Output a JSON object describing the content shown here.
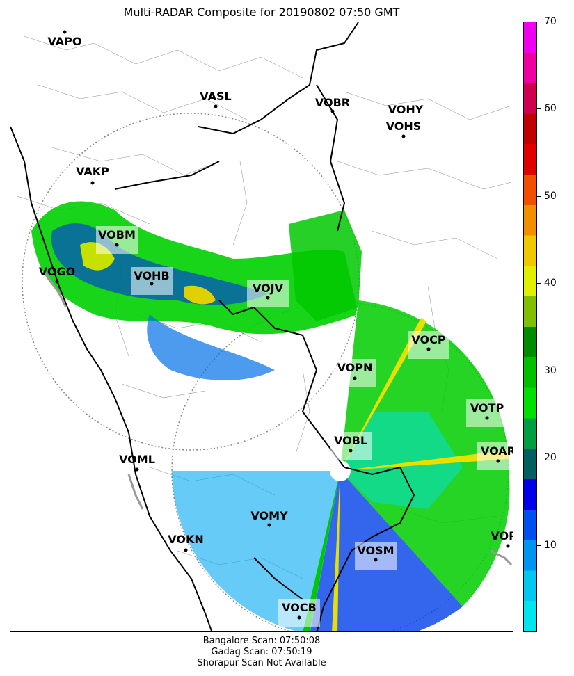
{
  "title": "Multi-RADAR Composite for 20190802 07:50 GMT",
  "stations": [
    {
      "code": "VAPO",
      "highlight": false
    },
    {
      "code": "VASL",
      "highlight": false
    },
    {
      "code": "VOBR",
      "highlight": false
    },
    {
      "code": "VOHY",
      "highlight": false
    },
    {
      "code": "VOHS",
      "highlight": false
    },
    {
      "code": "VAKP",
      "highlight": false
    },
    {
      "code": "VOBM",
      "highlight": true
    },
    {
      "code": "VOGO",
      "highlight": false
    },
    {
      "code": "VOHB",
      "highlight": true
    },
    {
      "code": "VOJV",
      "highlight": true
    },
    {
      "code": "VOCP",
      "highlight": true
    },
    {
      "code": "VOPN",
      "highlight": true
    },
    {
      "code": "VOTP",
      "highlight": true
    },
    {
      "code": "VOBL",
      "highlight": true
    },
    {
      "code": "VOAR",
      "highlight": true
    },
    {
      "code": "VOML",
      "highlight": false
    },
    {
      "code": "VOMY",
      "highlight": false
    },
    {
      "code": "VOKN",
      "highlight": false
    },
    {
      "code": "VOSM",
      "highlight": true
    },
    {
      "code": "VOPC",
      "highlight": false
    },
    {
      "code": "VOCB",
      "highlight": true
    }
  ],
  "colorbar": {
    "min": 0,
    "max": 70,
    "ticks": [
      10,
      20,
      30,
      40,
      50,
      60,
      70
    ],
    "colors": [
      "#00e5ee",
      "#00c8f0",
      "#0096f0",
      "#0050f0",
      "#0000e8",
      "#006060",
      "#00a040",
      "#00e000",
      "#00c000",
      "#008c00",
      "#80c000",
      "#e0f000",
      "#f0c800",
      "#f09000",
      "#f05000",
      "#e00000",
      "#c00000",
      "#d00050",
      "#f000a0",
      "#f000f0"
    ]
  },
  "footer": [
    "Bangalore Scan: 07:50:08",
    "Gadag Scan: 07:50:19",
    "Shorapur Scan Not Available"
  ]
}
